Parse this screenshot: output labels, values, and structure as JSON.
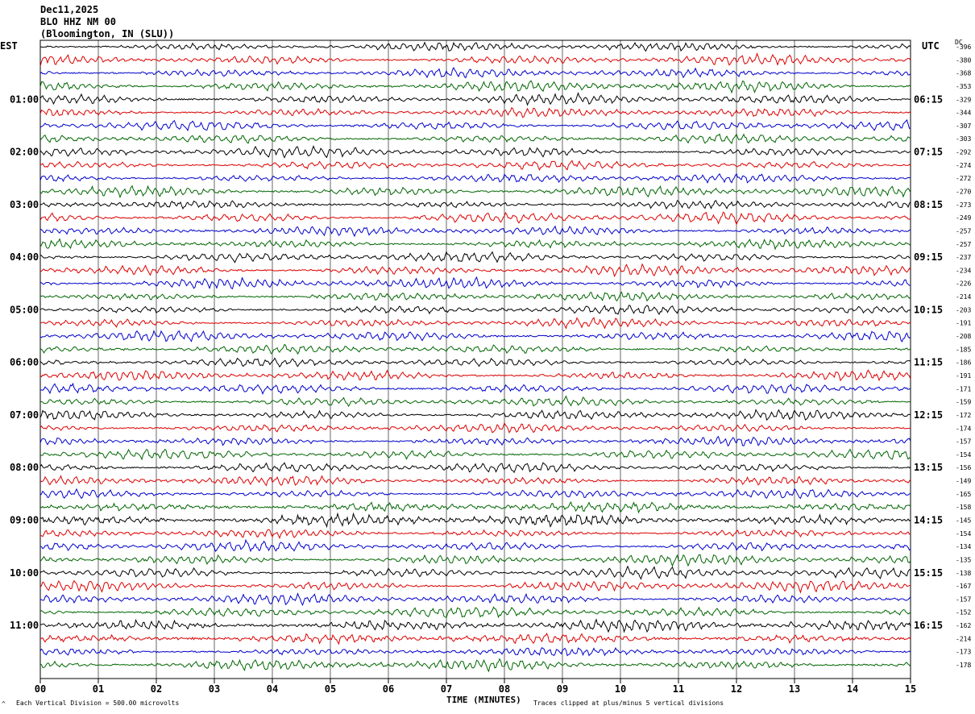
{
  "header": {
    "date": "Dec11,2025",
    "station": "BLO HHZ NM 00",
    "location": "(Bloomington, IN (SLU))"
  },
  "labels": {
    "left_zone": "EST",
    "right_zone": "UTC",
    "dc": "DC"
  },
  "footer": {
    "vertical_division": "Each Vertical Division =  500.00 microvolts",
    "clipping": "Traces clipped at plus/minus 5 vertical divisions",
    "xlabel": "TIME (MINUTES)"
  },
  "chart_data": {
    "type": "line",
    "title": "BLO HHZ NM 00",
    "xlabel": "TIME (MINUTES)",
    "xlim": [
      0,
      15
    ],
    "x_ticks": [
      "00",
      "01",
      "02",
      "03",
      "04",
      "05",
      "06",
      "07",
      "08",
      "09",
      "10",
      "11",
      "12",
      "13",
      "14",
      "15"
    ],
    "left_hour_labels": [
      "01:00",
      "02:00",
      "03:00",
      "04:00",
      "05:00",
      "06:00",
      "07:00",
      "08:00",
      "09:00",
      "10:00",
      "11:00"
    ],
    "right_hour_labels": [
      "06:15",
      "07:15",
      "08:15",
      "09:15",
      "10:15",
      "11:15",
      "12:15",
      "13:15",
      "14:15",
      "15:15",
      "16:15"
    ],
    "trace_colors": [
      "#000000",
      "#dd0000",
      "#0000cc",
      "#006600"
    ],
    "num_traces": 48,
    "dc_offsets": [
      -396,
      -380,
      -368,
      -353,
      -329,
      -344,
      -307,
      -303,
      -292,
      -274,
      -272,
      -270,
      -273,
      -249,
      -257,
      -257,
      -237,
      -234,
      -226,
      -214,
      -203,
      -191,
      -208,
      -185,
      -186,
      -191,
      -171,
      -159,
      -172,
      -174,
      -157,
      -154,
      -156,
      -149,
      -165,
      -158,
      -145,
      -154,
      -134,
      -135,
      -138,
      -167,
      -157,
      -152,
      -162,
      -214,
      -173,
      -178
    ],
    "grid": true
  }
}
